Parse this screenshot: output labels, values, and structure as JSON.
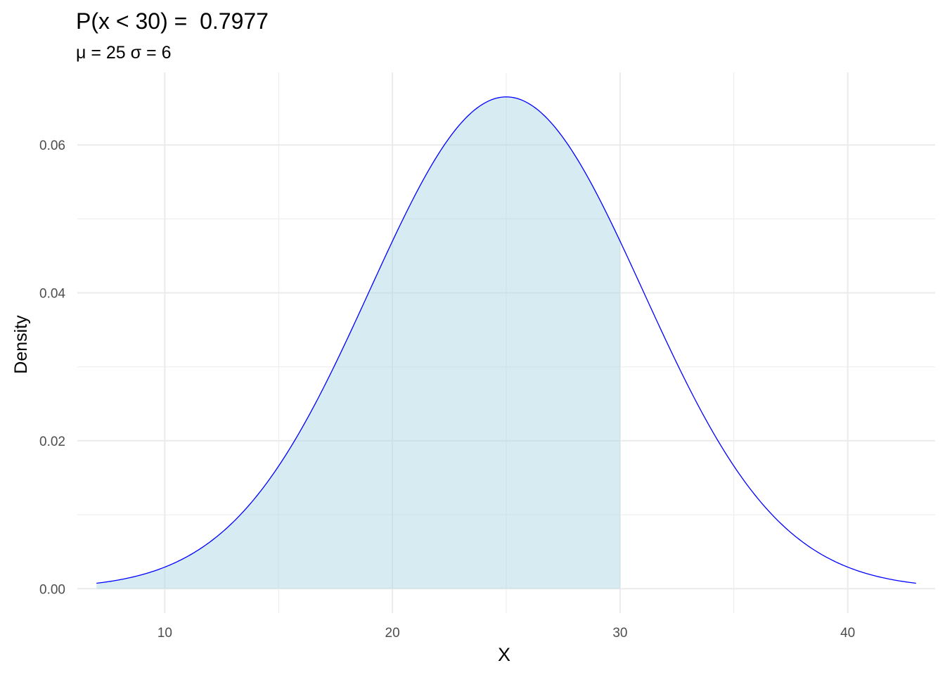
{
  "chart_data": {
    "type": "area",
    "title": "P(x < 30) =  0.7977",
    "subtitle": "μ = 25 σ = 6",
    "xlabel": "X",
    "ylabel": "Density",
    "distribution": {
      "family": "normal",
      "mean": 25,
      "sd": 6
    },
    "x_range": [
      7,
      43
    ],
    "shade_upper": 30,
    "xlim": [
      6.16,
      43.84
    ],
    "ylim": [
      -0.0033,
      0.0698
    ],
    "x_ticks": [
      10,
      20,
      30,
      40
    ],
    "x_tick_labels": [
      "10",
      "20",
      "30",
      "40"
    ],
    "y_ticks": [
      0,
      0.02,
      0.04,
      0.06
    ],
    "y_tick_labels": [
      "0.00",
      "0.02",
      "0.04",
      "0.06"
    ],
    "grid": true,
    "colors": {
      "line": "#0000ff",
      "fill": "#add8e6",
      "grid": "#ebebeb"
    }
  }
}
